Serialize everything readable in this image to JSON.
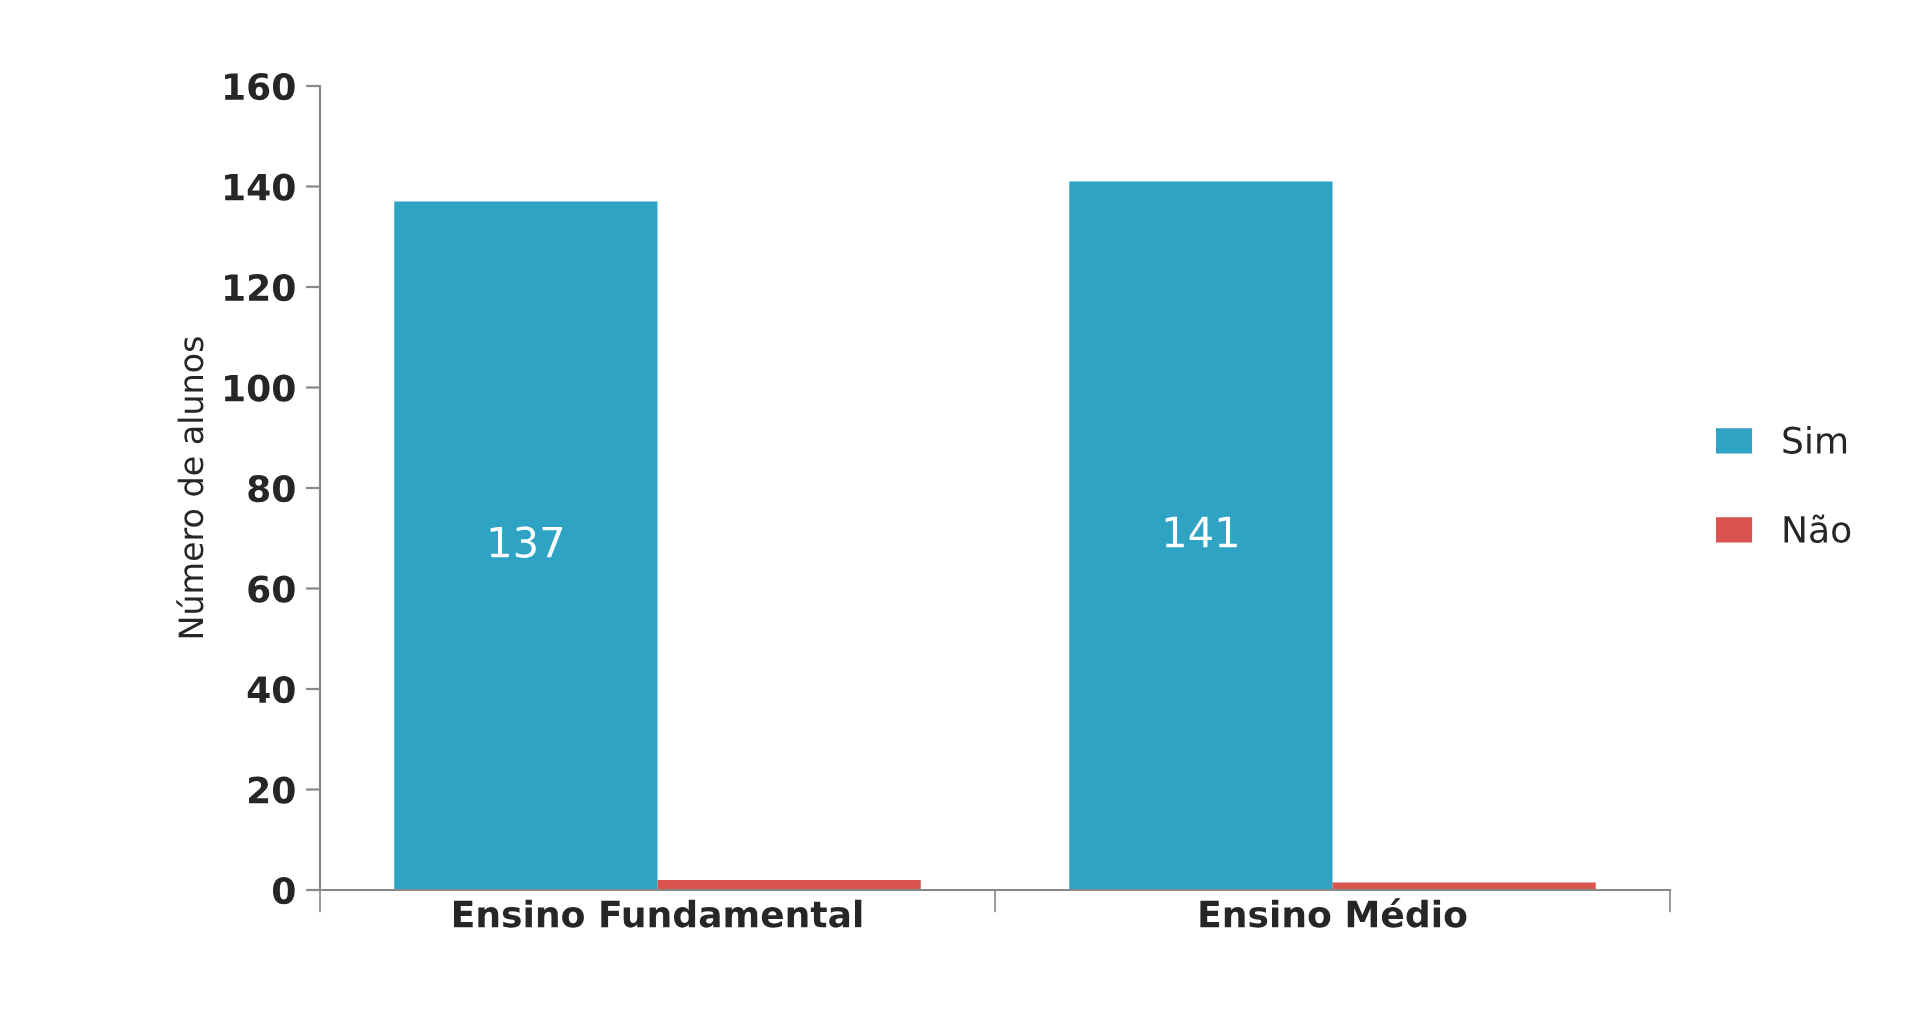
{
  "chart_data": {
    "type": "bar",
    "ylabel": "Número de alunos",
    "categories": [
      "Ensino Fundamental",
      "Ensino Médio"
    ],
    "series": [
      {
        "name": "Sim",
        "color": "#2fa3c4",
        "values": [
          137,
          141
        ],
        "value_labels": [
          "137",
          "141"
        ]
      },
      {
        "name": "Não",
        "color": "#d9534f",
        "values": [
          2,
          1.5
        ]
      }
    ],
    "ylim": [
      0,
      160
    ],
    "yticks": [
      0,
      20,
      40,
      60,
      80,
      100,
      120,
      140,
      160
    ],
    "grid": false,
    "legend": "right"
  }
}
